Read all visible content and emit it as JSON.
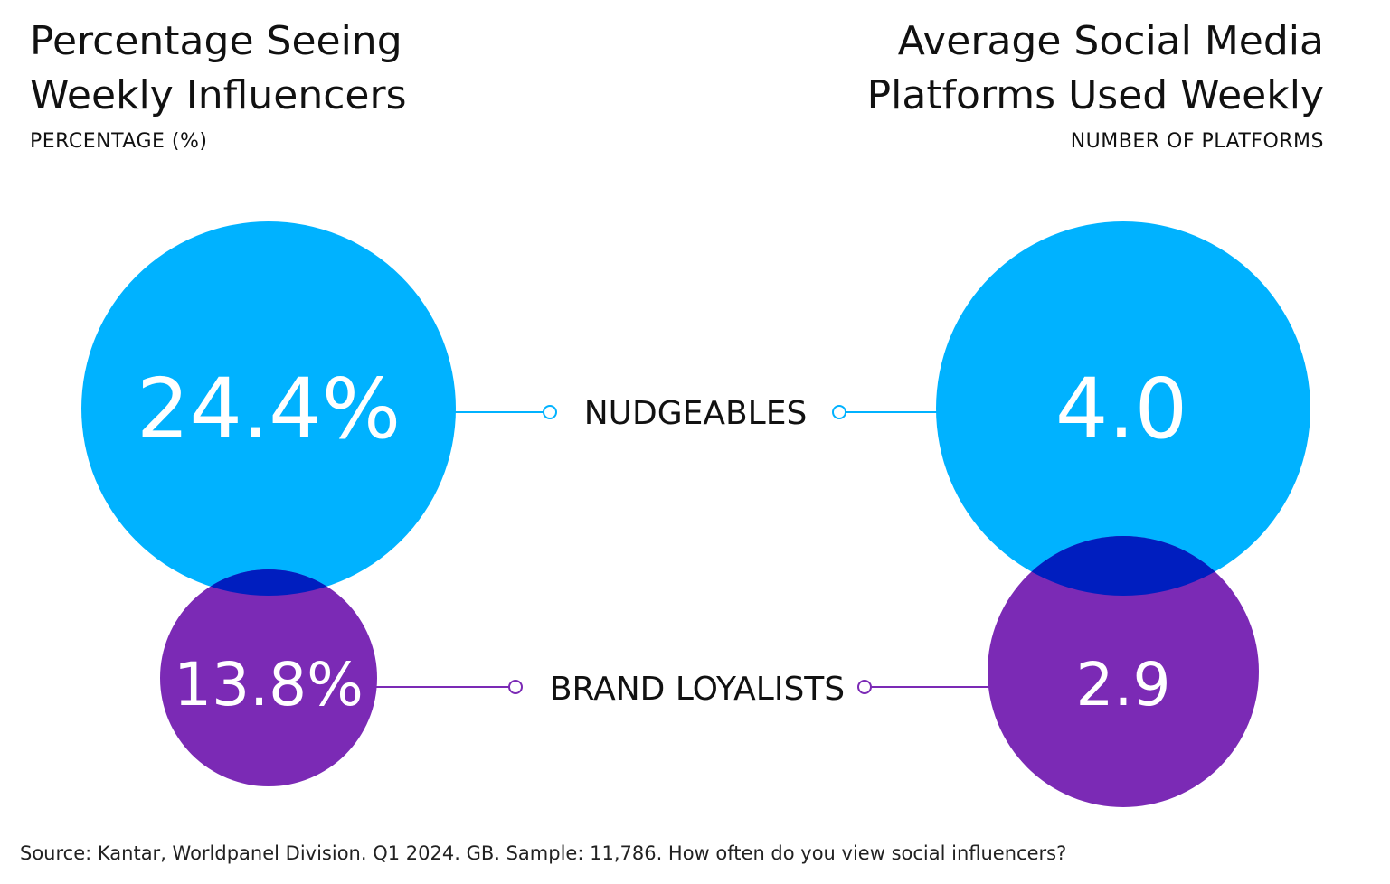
{
  "chart_data": [
    {
      "type": "bubble",
      "title": "Percentage Seeing Weekly Influencers",
      "subtitle": "PERCENTAGE (%)",
      "series": [
        {
          "name": "NUDGEABLES",
          "value": 24.4,
          "label": "24.4%"
        },
        {
          "name": "BRAND LOYALISTS",
          "value": 13.8,
          "label": "13.8%"
        }
      ]
    },
    {
      "type": "bubble",
      "title": "Average Social Media Platforms Used Weekly",
      "subtitle": "NUMBER OF PLATFORMS",
      "series": [
        {
          "name": "NUDGEABLES",
          "value": 4.0,
          "label": "4.0"
        },
        {
          "name": "BRAND LOYALISTS",
          "value": 2.9,
          "label": "2.9"
        }
      ]
    }
  ],
  "titles": {
    "left_line1": "Percentage Seeing",
    "left_line2": "Weekly Influencers",
    "left_sub": "PERCENTAGE (%)",
    "right_line1": "Average Social Media",
    "right_line2": "Platforms Used Weekly",
    "right_sub": "NUMBER OF PLATFORMS"
  },
  "segments": {
    "nudgeables": "NUDGEABLES",
    "brand_loyalists": "BRAND LOYALISTS"
  },
  "colors": {
    "nudgeables": "#00B2FF",
    "brand_loyalists": "#7B2AB5",
    "overlap": "#001EBF"
  },
  "source": "Source: Kantar, Worldpanel Division. Q1 2024. GB. Sample: 11,786. How often do you view social influencers?"
}
